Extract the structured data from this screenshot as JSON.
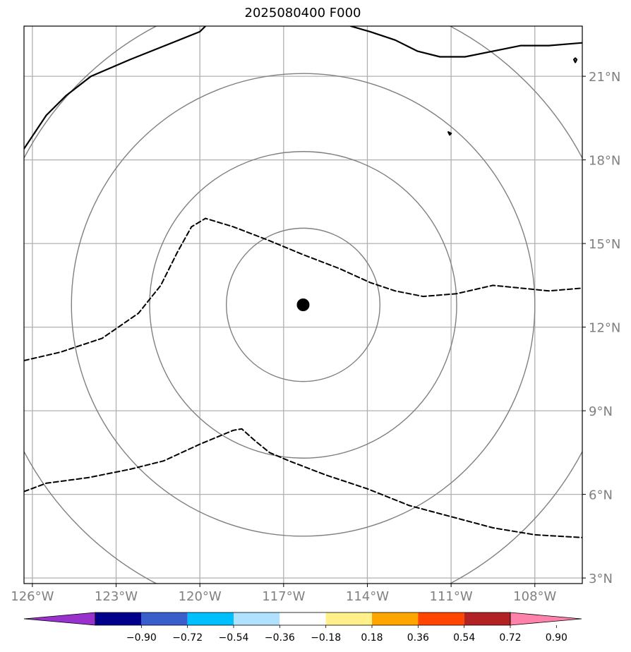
{
  "title": "2025080400 F000",
  "chart_data": {
    "type": "map-contour",
    "title": "2025080400 F000",
    "x_axis": {
      "ticks": [
        -126,
        -123,
        -120,
        -117,
        -114,
        -111,
        -108
      ],
      "labels": [
        "126°W",
        "123°W",
        "120°W",
        "117°W",
        "114°W",
        "111°W",
        "108°W"
      ],
      "range": [
        -126.3,
        -106.3
      ]
    },
    "y_axis": {
      "ticks": [
        3,
        6,
        9,
        12,
        15,
        18,
        21
      ],
      "labels": [
        "3°N",
        "6°N",
        "9°N",
        "12°N",
        "15°N",
        "18°N",
        "21°N"
      ],
      "range": [
        2.8,
        22.8
      ],
      "side": "right"
    },
    "grid": true,
    "center": {
      "lon": -116.3,
      "lat": 12.8
    },
    "range_rings_deg": [
      2.75,
      5.5,
      8.3,
      11.3
    ],
    "contours": [
      {
        "style": "solid",
        "points": [
          [
            -126.3,
            18.4
          ],
          [
            -125.5,
            19.6
          ],
          [
            -124.8,
            20.3
          ],
          [
            -123.9,
            21.0
          ],
          [
            -122.5,
            21.6
          ],
          [
            -121.5,
            22.0
          ],
          [
            -120.0,
            22.6
          ],
          [
            -119.8,
            22.8
          ]
        ]
      },
      {
        "style": "solid",
        "points": [
          [
            -114.6,
            22.8
          ],
          [
            -113.9,
            22.6
          ],
          [
            -113.0,
            22.3
          ],
          [
            -112.2,
            21.9
          ],
          [
            -111.4,
            21.7
          ],
          [
            -110.5,
            21.7
          ],
          [
            -109.5,
            21.9
          ],
          [
            -108.5,
            22.1
          ],
          [
            -107.5,
            22.1
          ],
          [
            -106.3,
            22.2
          ]
        ]
      },
      {
        "style": "solid",
        "points": [
          [
            -106.6,
            21.6
          ],
          [
            -106.55,
            21.65
          ],
          [
            -106.5,
            21.6
          ],
          [
            -106.55,
            21.5
          ],
          [
            -106.6,
            21.6
          ]
        ]
      },
      {
        "style": "solid",
        "points": [
          [
            -111.1,
            19.0
          ],
          [
            -111.0,
            18.95
          ],
          [
            -111.05,
            18.9
          ],
          [
            -111.1,
            19.0
          ]
        ]
      },
      {
        "style": "dashed",
        "points": [
          [
            -126.3,
            10.8
          ],
          [
            -125.0,
            11.1
          ],
          [
            -123.5,
            11.6
          ],
          [
            -122.2,
            12.5
          ],
          [
            -121.4,
            13.5
          ],
          [
            -120.8,
            14.7
          ],
          [
            -120.3,
            15.6
          ],
          [
            -119.8,
            15.9
          ],
          [
            -118.8,
            15.6
          ],
          [
            -117.5,
            15.1
          ],
          [
            -116.3,
            14.6
          ],
          [
            -115.0,
            14.1
          ],
          [
            -113.9,
            13.6
          ],
          [
            -113.0,
            13.3
          ],
          [
            -112.0,
            13.1
          ],
          [
            -110.8,
            13.2
          ],
          [
            -109.5,
            13.5
          ],
          [
            -108.5,
            13.4
          ],
          [
            -107.5,
            13.3
          ],
          [
            -106.3,
            13.4
          ]
        ]
      },
      {
        "style": "dashed",
        "points": [
          [
            -126.3,
            6.1
          ],
          [
            -125.5,
            6.4
          ],
          [
            -124.0,
            6.6
          ],
          [
            -122.5,
            6.9
          ],
          [
            -121.3,
            7.2
          ],
          [
            -120.0,
            7.8
          ],
          [
            -118.8,
            8.3
          ],
          [
            -118.5,
            8.35
          ],
          [
            -118.0,
            7.9
          ],
          [
            -117.5,
            7.5
          ],
          [
            -116.8,
            7.2
          ],
          [
            -115.5,
            6.7
          ],
          [
            -114.0,
            6.2
          ],
          [
            -112.5,
            5.6
          ],
          [
            -111.0,
            5.2
          ],
          [
            -109.5,
            4.8
          ],
          [
            -108.0,
            4.55
          ],
          [
            -106.3,
            4.45
          ]
        ]
      }
    ],
    "marker": {
      "lon": -116.3,
      "lat": 12.8,
      "color": "#000000"
    }
  },
  "colorbar": {
    "tick_labels": [
      "−0.90",
      "−0.72",
      "−0.54",
      "−0.36",
      "−0.18",
      "0.18",
      "0.36",
      "0.54",
      "0.72",
      "0.90"
    ],
    "colors": [
      "#9932cc",
      "#00008b",
      "#3a5fcd",
      "#00bfff",
      "#b0e2ff",
      "#ffffff",
      "#fff08a",
      "#ffa500",
      "#ff4500",
      "#b22222",
      "#ff82ab"
    ]
  }
}
